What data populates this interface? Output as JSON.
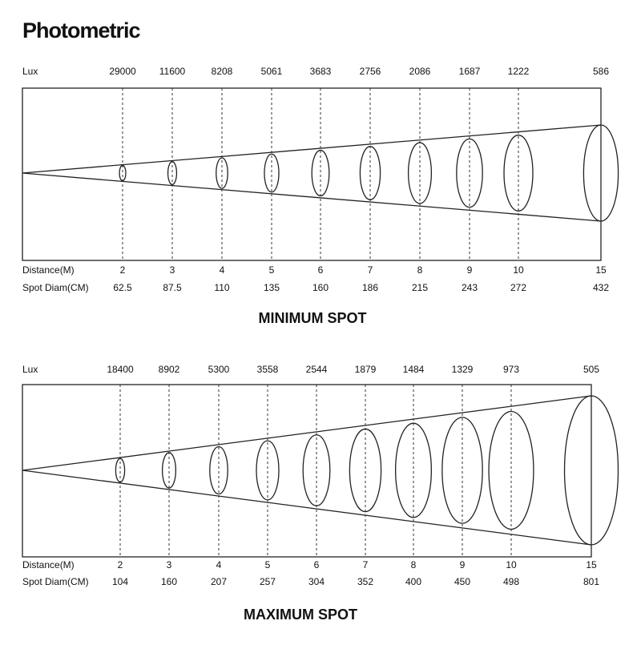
{
  "title": "Photometric",
  "panels": [
    {
      "lux_label": "Lux",
      "distance_label": "Distance(M)",
      "spot_label": "Spot Diam(CM)",
      "lux": [
        29000,
        11600,
        8208,
        5061,
        3683,
        2756,
        2086,
        1687,
        1222,
        586
      ],
      "distance": [
        2,
        3,
        4,
        5,
        6,
        7,
        8,
        9,
        10,
        15
      ],
      "spot_diam": [
        62.5,
        87.5,
        110,
        135,
        160,
        186,
        215,
        243,
        272,
        432
      ],
      "caption": "MINIMUM SPOT"
    },
    {
      "lux_label": "Lux",
      "distance_label": "Distance(M)",
      "spot_label": "Spot Diam(CM)",
      "lux": [
        18400,
        8902,
        5300,
        3558,
        2544,
        1879,
        1484,
        1329,
        973,
        505
      ],
      "distance": [
        2,
        3,
        4,
        5,
        6,
        7,
        8,
        9,
        10,
        15
      ],
      "spot_diam": [
        104,
        160,
        207,
        257,
        304,
        352,
        400,
        450,
        498,
        801
      ],
      "caption": "MAXIMUM SPOT"
    }
  ]
}
